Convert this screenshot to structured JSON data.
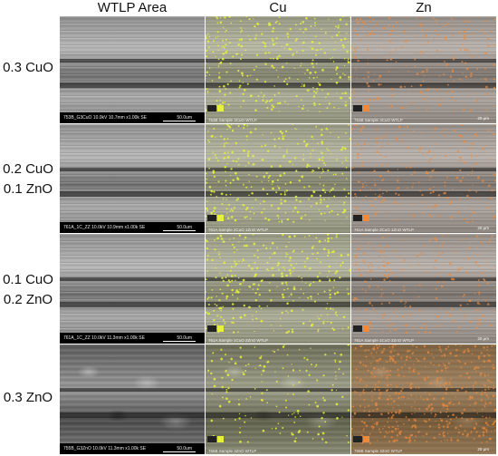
{
  "columns": [
    "WTLP Area",
    "Cu",
    "Zn"
  ],
  "rows": [
    {
      "label_lines": [
        "0.3 CuO"
      ],
      "sem_caption": "753B_G3CuO 10.0kV 10.7mm x1.00k SE",
      "sem_scale": "50.0um",
      "eds_caption": "753B Sample 3CuO WTLP",
      "zn_scale": "20 μm"
    },
    {
      "label_lines": [
        "0.2 CuO",
        "0.1 ZnO"
      ],
      "sem_caption": "761A_1C_ZZ 10.0kV 10.9mm x1.00k SE",
      "sem_scale": "50.0um",
      "eds_caption": "761A Sample 2CuO 1ZnO WTLP",
      "zn_scale": "20 μm"
    },
    {
      "label_lines": [
        "0.1 CuO",
        "0.2 ZnO"
      ],
      "sem_caption": "761A_1C_ZZ 10.0kV 11.3mm x1.00k SE",
      "sem_scale": "50.0um",
      "eds_caption": "761A Sample 1CuO 2ZnO WTLP",
      "zn_scale": "20 μm"
    },
    {
      "label_lines": [
        "0.3 ZnO"
      ],
      "sem_caption": "755B_G3ZnO 10.0kV 11.3mm x1.00k SE",
      "sem_scale": "50.0um",
      "eds_caption": "755B Sample 3ZnO WTLP",
      "zn_scale": "20 μm"
    }
  ],
  "colors": {
    "cu_dot": "#e6f23a",
    "zn_dot": "#f08a3a",
    "scalebar_bg": "#000000"
  }
}
